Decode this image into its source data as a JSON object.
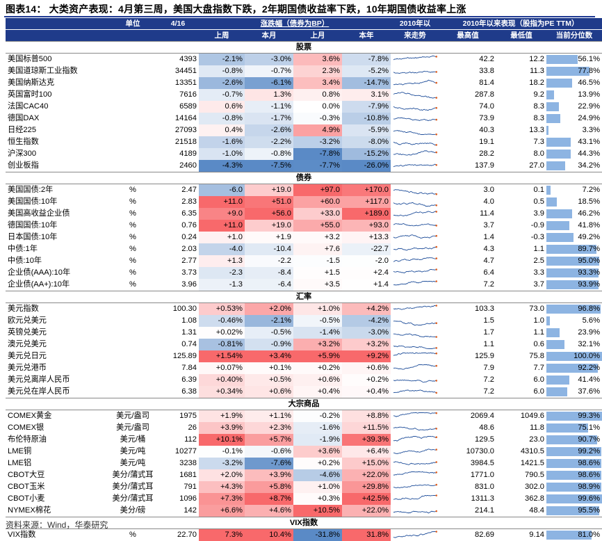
{
  "title": "图表14： 大类资产表现：4月第三周，美国大盘指数下跌，2年期国债收益率下跌，10年期国债收益率上涨",
  "source": "资料来源：Wind，华泰研究",
  "colors": {
    "header_bg": "#1f3b8a",
    "pos_strong": "#f8696b",
    "neg_strong": "#5a8ac6",
    "neutral": "#ffffff",
    "bar": "#8db4e2",
    "spark": "#1f4e9a"
  },
  "header": {
    "unit": "单位",
    "date": "4/16",
    "change_group": "涨跌幅（债券为BP）",
    "week": "上周",
    "mtd": "本月",
    "last_month": "上月",
    "ytd": "本年",
    "trend_top": "2010年以",
    "trend_bottom": "来走势",
    "perf_group": "2010年以来表现（股指为PE TTM）",
    "high": "最高值",
    "low": "最低值",
    "pct": "当前分位数"
  },
  "sections": [
    {
      "name": "股票",
      "rows": [
        {
          "name": "美国标普500",
          "unit": "",
          "value": "4393",
          "w": "-2.1%",
          "m": "-3.0%",
          "lm": "3.6%",
          "y": "-7.8%",
          "wv": -2.1,
          "mv": -3.0,
          "lmv": 3.6,
          "yv": -7.8,
          "high": "42.2",
          "low": "12.2",
          "pct": "56.1%",
          "pctv": 56.1
        },
        {
          "name": "美国道琼斯工业指数",
          "unit": "",
          "value": "34451",
          "w": "-0.8%",
          "m": "-0.7%",
          "lm": "2.3%",
          "y": "-5.2%",
          "wv": -0.8,
          "mv": -0.7,
          "lmv": 2.3,
          "yv": -5.2,
          "high": "33.8",
          "low": "11.3",
          "pct": "77.8%",
          "pctv": 77.8
        },
        {
          "name": "美国纳斯达克",
          "unit": "",
          "value": "13351",
          "w": "-2.6%",
          "m": "-6.1%",
          "lm": "3.4%",
          "y": "-14.7%",
          "wv": -2.6,
          "mv": -6.1,
          "lmv": 3.4,
          "yv": -14.7,
          "high": "81.4",
          "low": "18.2",
          "pct": "46.5%",
          "pctv": 46.5
        },
        {
          "name": "英国富时100",
          "unit": "",
          "value": "7616",
          "w": "-0.7%",
          "m": "1.3%",
          "lm": "0.8%",
          "y": "3.1%",
          "wv": -0.7,
          "mv": 1.3,
          "lmv": 0.8,
          "yv": 3.1,
          "high": "287.8",
          "low": "9.2",
          "pct": "13.9%",
          "pctv": 13.9
        },
        {
          "name": "法国CAC40",
          "unit": "",
          "value": "6589",
          "w": "0.6%",
          "m": "-1.1%",
          "lm": "0.0%",
          "y": "-7.9%",
          "wv": 0.6,
          "mv": -1.1,
          "lmv": 0.0,
          "yv": -7.9,
          "high": "74.0",
          "low": "8.3",
          "pct": "22.9%",
          "pctv": 22.9
        },
        {
          "name": "德国DAX",
          "unit": "",
          "value": "14164",
          "w": "-0.8%",
          "m": "-1.7%",
          "lm": "-0.3%",
          "y": "-10.8%",
          "wv": -0.8,
          "mv": -1.7,
          "lmv": -0.3,
          "yv": -10.8,
          "high": "73.9",
          "low": "8.3",
          "pct": "24.9%",
          "pctv": 24.9
        },
        {
          "name": "日经225",
          "unit": "",
          "value": "27093",
          "w": "0.4%",
          "m": "-2.6%",
          "lm": "4.9%",
          "y": "-5.9%",
          "wv": 0.4,
          "mv": -2.6,
          "lmv": 4.9,
          "yv": -5.9,
          "high": "40.3",
          "low": "13.3",
          "pct": "3.3%",
          "pctv": 3.3
        },
        {
          "name": "恒生指数",
          "unit": "",
          "value": "21518",
          "w": "-1.6%",
          "m": "-2.2%",
          "lm": "-3.2%",
          "y": "-8.0%",
          "wv": -1.6,
          "mv": -2.2,
          "lmv": -3.2,
          "yv": -8.0,
          "high": "19.1",
          "low": "7.3",
          "pct": "43.1%",
          "pctv": 43.1
        },
        {
          "name": "沪深300",
          "unit": "",
          "value": "4189",
          "w": "-1.0%",
          "m": "-0.8%",
          "lm": "-7.8%",
          "y": "-15.2%",
          "wv": -1.0,
          "mv": -0.8,
          "lmv": -7.8,
          "yv": -15.2,
          "high": "28.2",
          "low": "8.0",
          "pct": "44.3%",
          "pctv": 44.3
        },
        {
          "name": "创业板指",
          "unit": "",
          "value": "2460",
          "w": "-4.3%",
          "m": "-7.5%",
          "lm": "-7.7%",
          "y": "-26.0%",
          "wv": -4.3,
          "mv": -7.5,
          "lmv": -7.7,
          "yv": -26.0,
          "high": "137.9",
          "low": "27.0",
          "pct": "34.2%",
          "pctv": 34.2
        }
      ]
    },
    {
      "name": "债券",
      "rows": [
        {
          "name": "美国国债:2年",
          "unit": "%",
          "value": "2.47",
          "w": "-6.0",
          "m": "+19.0",
          "lm": "+97.0",
          "y": "+170.0",
          "wv": -6.0,
          "mv": 19.0,
          "lmv": 97.0,
          "yv": 170.0,
          "high": "3.0",
          "low": "0.1",
          "pct": "7.2%",
          "pctv": 7.2
        },
        {
          "name": "美国国债:10年",
          "unit": "%",
          "value": "2.83",
          "w": "+11.0",
          "m": "+51.0",
          "lm": "+60.0",
          "y": "+117.0",
          "wv": 11.0,
          "mv": 51.0,
          "lmv": 60.0,
          "yv": 117.0,
          "high": "4.0",
          "low": "0.5",
          "pct": "18.5%",
          "pctv": 18.5
        },
        {
          "name": "美国高收益企业债",
          "unit": "%",
          "value": "6.35",
          "w": "+9.0",
          "m": "+56.0",
          "lm": "+33.0",
          "y": "+189.0",
          "wv": 9.0,
          "mv": 56.0,
          "lmv": 33.0,
          "yv": 189.0,
          "high": "11.4",
          "low": "3.9",
          "pct": "46.2%",
          "pctv": 46.2
        },
        {
          "name": "德国国债:10年",
          "unit": "%",
          "value": "0.76",
          "w": "+11.0",
          "m": "+19.0",
          "lm": "+55.0",
          "y": "+93.0",
          "wv": 11.0,
          "mv": 19.0,
          "lmv": 55.0,
          "yv": 93.0,
          "high": "3.7",
          "low": "-0.9",
          "pct": "41.8%",
          "pctv": 41.8
        },
        {
          "name": "日本国债:10年",
          "unit": "%",
          "value": "0.24",
          "w": "+1.0",
          "m": "+1.9",
          "lm": "+3.2",
          "y": "+13.3",
          "wv": 1.0,
          "mv": 1.9,
          "lmv": 3.2,
          "yv": 13.3,
          "high": "1.4",
          "low": "-0.3",
          "pct": "49.2%",
          "pctv": 49.2
        },
        {
          "name": "中债:1年",
          "unit": "%",
          "value": "2.03",
          "w": "-4.0",
          "m": "-10.4",
          "lm": "+7.6",
          "y": "-22.7",
          "wv": -4.0,
          "mv": -10.4,
          "lmv": 7.6,
          "yv": -22.7,
          "high": "4.3",
          "low": "1.1",
          "pct": "89.7%",
          "pctv": 89.7
        },
        {
          "name": "中债:10年",
          "unit": "%",
          "value": "2.77",
          "w": "+1.3",
          "m": "-2.2",
          "lm": "-1.5",
          "y": "-2.0",
          "wv": 1.3,
          "mv": -2.2,
          "lmv": -1.5,
          "yv": -2.0,
          "high": "4.7",
          "low": "2.5",
          "pct": "95.0%",
          "pctv": 95.0
        },
        {
          "name": "企业债(AAA):10年",
          "unit": "%",
          "value": "3.73",
          "w": "-2.3",
          "m": "-8.4",
          "lm": "+1.5",
          "y": "+2.4",
          "wv": -2.3,
          "mv": -8.4,
          "lmv": 1.5,
          "yv": 2.4,
          "high": "6.4",
          "low": "3.3",
          "pct": "93.3%",
          "pctv": 93.3
        },
        {
          "name": "企业债(AA+):10年",
          "unit": "%",
          "value": "3.96",
          "w": "-1.3",
          "m": "-6.4",
          "lm": "+3.5",
          "y": "+1.4",
          "wv": -1.3,
          "mv": -6.4,
          "lmv": 3.5,
          "yv": 1.4,
          "high": "7.2",
          "low": "3.7",
          "pct": "93.9%",
          "pctv": 93.9
        }
      ]
    },
    {
      "name": "汇率",
      "rows": [
        {
          "name": "美元指数",
          "unit": "",
          "value": "100.30",
          "w": "+0.53%",
          "m": "+2.0%",
          "lm": "+1.0%",
          "y": "+4.2%",
          "wv": 0.53,
          "mv": 2.0,
          "lmv": 1.0,
          "yv": 4.2,
          "high": "103.3",
          "low": "73.0",
          "pct": "96.8%",
          "pctv": 96.8
        },
        {
          "name": "欧元兑美元",
          "unit": "",
          "value": "1.08",
          "w": "-0.46%",
          "m": "-2.1%",
          "lm": "-0.5%",
          "y": "-4.2%",
          "wv": -0.46,
          "mv": -2.1,
          "lmv": -0.5,
          "yv": -4.2,
          "high": "1.5",
          "low": "1.0",
          "pct": "5.6%",
          "pctv": 5.6
        },
        {
          "name": "英镑兑美元",
          "unit": "",
          "value": "1.31",
          "w": "+0.02%",
          "m": "-0.5%",
          "lm": "-1.4%",
          "y": "-3.0%",
          "wv": 0.02,
          "mv": -0.5,
          "lmv": -1.4,
          "yv": -3.0,
          "high": "1.7",
          "low": "1.1",
          "pct": "23.9%",
          "pctv": 23.9
        },
        {
          "name": "澳元兑美元",
          "unit": "",
          "value": "0.74",
          "w": "-0.81%",
          "m": "-0.9%",
          "lm": "+3.2%",
          "y": "+3.2%",
          "wv": -0.81,
          "mv": -0.9,
          "lmv": 3.2,
          "yv": 3.2,
          "high": "1.1",
          "low": "0.6",
          "pct": "32.1%",
          "pctv": 32.1
        },
        {
          "name": "美元兑日元",
          "unit": "",
          "value": "125.89",
          "w": "+1.54%",
          "m": "+3.4%",
          "lm": "+5.9%",
          "y": "+9.2%",
          "wv": 1.54,
          "mv": 3.4,
          "lmv": 5.9,
          "yv": 9.2,
          "high": "125.9",
          "low": "75.8",
          "pct": "100.0%",
          "pctv": 100.0
        },
        {
          "name": "美元兑港币",
          "unit": "",
          "value": "7.84",
          "w": "+0.07%",
          "m": "+0.1%",
          "lm": "+0.2%",
          "y": "+0.6%",
          "wv": 0.07,
          "mv": 0.1,
          "lmv": 0.2,
          "yv": 0.6,
          "high": "7.9",
          "low": "7.7",
          "pct": "92.2%",
          "pctv": 92.2
        },
        {
          "name": "美元兑离岸人民币",
          "unit": "",
          "value": "6.39",
          "w": "+0.40%",
          "m": "+0.5%",
          "lm": "+0.6%",
          "y": "+0.2%",
          "wv": 0.4,
          "mv": 0.5,
          "lmv": 0.6,
          "yv": 0.2,
          "high": "7.2",
          "low": "6.0",
          "pct": "41.4%",
          "pctv": 41.4
        },
        {
          "name": "美元兑在岸人民币",
          "unit": "",
          "value": "6.38",
          "w": "+0.34%",
          "m": "+0.6%",
          "lm": "+0.4%",
          "y": "+0.4%",
          "wv": 0.34,
          "mv": 0.6,
          "lmv": 0.4,
          "yv": 0.4,
          "high": "7.2",
          "low": "6.0",
          "pct": "37.6%",
          "pctv": 37.6
        }
      ]
    },
    {
      "name": "大宗商品",
      "rows": [
        {
          "name": "COMEX黄金",
          "unit": "美元/盎司",
          "value": "1975",
          "w": "+1.9%",
          "m": "+1.1%",
          "lm": "-0.2%",
          "y": "+8.8%",
          "wv": 1.9,
          "mv": 1.1,
          "lmv": -0.2,
          "yv": 8.8,
          "high": "2069.4",
          "low": "1049.6",
          "pct": "99.3%",
          "pctv": 99.3
        },
        {
          "name": "COMEX银",
          "unit": "美元/盎司",
          "value": "26",
          "w": "+3.9%",
          "m": "+2.3%",
          "lm": "-1.6%",
          "y": "+11.5%",
          "wv": 3.9,
          "mv": 2.3,
          "lmv": -1.6,
          "yv": 11.5,
          "high": "48.6",
          "low": "11.8",
          "pct": "75.1%",
          "pctv": 75.1
        },
        {
          "name": "布伦特原油",
          "unit": "美元/桶",
          "value": "112",
          "w": "+10.1%",
          "m": "+5.7%",
          "lm": "-1.9%",
          "y": "+39.3%",
          "wv": 10.1,
          "mv": 5.7,
          "lmv": -1.9,
          "yv": 39.3,
          "high": "129.5",
          "low": "23.0",
          "pct": "90.7%",
          "pctv": 90.7
        },
        {
          "name": "LME铜",
          "unit": "美元/吨",
          "value": "10277",
          "w": "-0.1%",
          "m": "-0.6%",
          "lm": "+3.6%",
          "y": "+6.4%",
          "wv": -0.1,
          "mv": -0.6,
          "lmv": 3.6,
          "yv": 6.4,
          "high": "10730.0",
          "low": "4310.5",
          "pct": "99.2%",
          "pctv": 99.2
        },
        {
          "name": "LME铝",
          "unit": "美元/吨",
          "value": "3238",
          "w": "-3.2%",
          "m": "-7.6%",
          "lm": "+0.2%",
          "y": "+15.0%",
          "wv": -3.2,
          "mv": -7.6,
          "lmv": 0.2,
          "yv": 15.0,
          "high": "3984.5",
          "low": "1421.5",
          "pct": "98.6%",
          "pctv": 98.6
        },
        {
          "name": "CBOT大豆",
          "unit": "美分/蒲式耳",
          "value": "1681",
          "w": "+2.0%",
          "m": "+3.9%",
          "lm": "-4.6%",
          "y": "+22.0%",
          "wv": 2.0,
          "mv": 3.9,
          "lmv": -4.6,
          "yv": 22.0,
          "high": "1771.0",
          "low": "790.5",
          "pct": "98.6%",
          "pctv": 98.6
        },
        {
          "name": "CBOT玉米",
          "unit": "美分/蒲式耳",
          "value": "791",
          "w": "+4.3%",
          "m": "+5.8%",
          "lm": "+1.0%",
          "y": "+29.8%",
          "wv": 4.3,
          "mv": 5.8,
          "lmv": 1.0,
          "yv": 29.8,
          "high": "831.0",
          "low": "302.0",
          "pct": "98.9%",
          "pctv": 98.9
        },
        {
          "name": "CBOT小麦",
          "unit": "美分/蒲式耳",
          "value": "1096",
          "w": "+7.3%",
          "m": "+8.7%",
          "lm": "+0.3%",
          "y": "+42.5%",
          "wv": 7.3,
          "mv": 8.7,
          "lmv": 0.3,
          "yv": 42.5,
          "high": "1311.3",
          "low": "362.8",
          "pct": "99.6%",
          "pctv": 99.6
        },
        {
          "name": "NYMEX棉花",
          "unit": "美分/磅",
          "value": "142",
          "w": "+6.6%",
          "m": "+4.6%",
          "lm": "+10.5%",
          "y": "+22.0%",
          "wv": 6.6,
          "mv": 4.6,
          "lmv": 10.5,
          "yv": 22.0,
          "high": "214.1",
          "low": "48.4",
          "pct": "95.5%",
          "pctv": 95.5
        }
      ]
    },
    {
      "name": "VIX指数",
      "rows": [
        {
          "name": "VIX指数",
          "unit": "%",
          "value": "22.70",
          "w": "7.3%",
          "m": "10.4%",
          "lm": "-31.8%",
          "y": "31.8%",
          "wv": 7.3,
          "mv": 10.4,
          "lmv": -31.8,
          "yv": 31.8,
          "high": "82.69",
          "low": "9.14",
          "pct": "81.0%",
          "pctv": 81.0
        }
      ]
    }
  ]
}
